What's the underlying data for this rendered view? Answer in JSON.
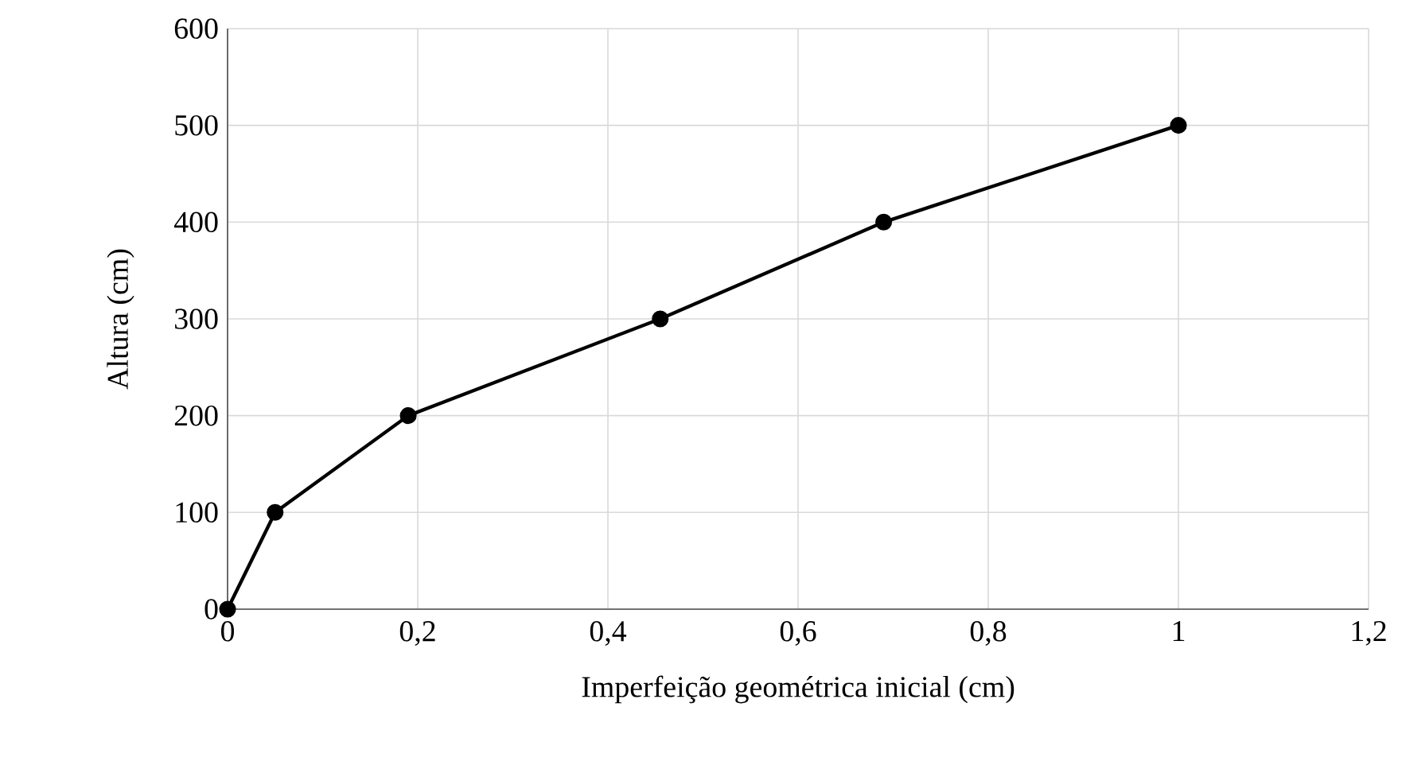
{
  "chart_data": {
    "type": "line",
    "xlabel": "Imperfeição geométrica inicial (cm)",
    "ylabel": "Altura (cm)",
    "x": [
      0,
      0.05,
      0.19,
      0.455,
      0.69,
      1
    ],
    "series": [
      {
        "color": "#000000",
        "values": [
          0,
          100,
          200,
          300,
          400,
          500
        ]
      }
    ],
    "xlim": [
      0,
      1.2
    ],
    "ylim": [
      0,
      600
    ],
    "xticks": [
      0,
      {
        "value": 0.2,
        "label": "0,2"
      },
      {
        "value": 0.4,
        "label": "0,4"
      },
      {
        "value": 0.6,
        "label": "0,6"
      },
      {
        "value": 0.8,
        "label": "0,8"
      },
      1,
      {
        "value": 1.2,
        "label": "1,2"
      }
    ],
    "yticks": [
      0,
      100,
      200,
      300,
      400,
      500,
      600
    ],
    "grid": true,
    "marker": "circle",
    "line_style": "solid"
  }
}
